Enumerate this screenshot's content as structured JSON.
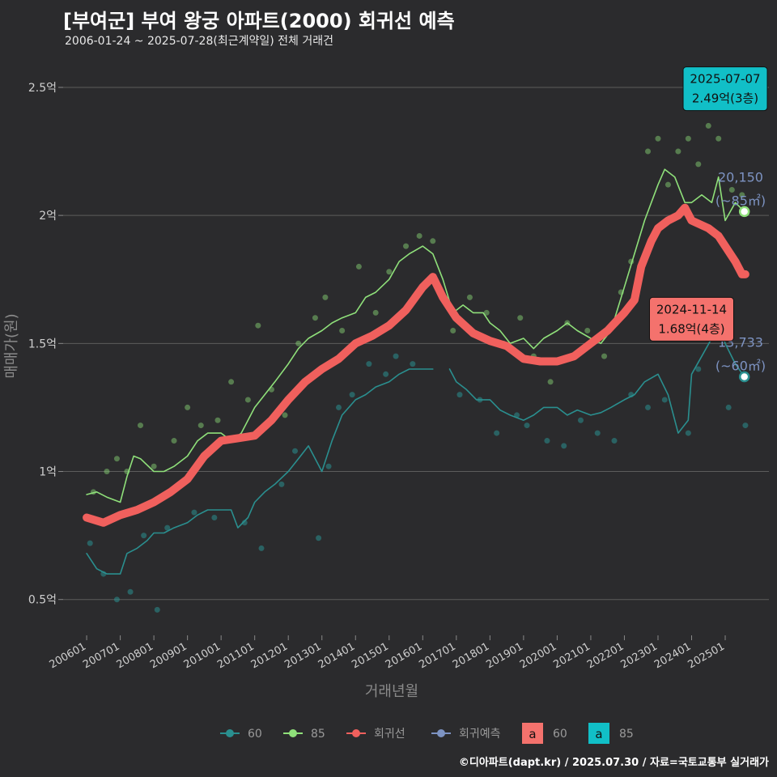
{
  "header": {
    "title": "[부여군] 부여 왕궁 아파트(2000) 회귀선 예측",
    "subtitle": "2006-01-24 ~ 2025-07-28(최근계약일) 전체 거래건",
    "credit": "©디아파트(dapt.kr) / 2025.07.30 / 자료=국토교통부 실거래가"
  },
  "colors": {
    "background": "#2b2b2d",
    "grid": "#5c5c5c",
    "s60": "#2a8f8f",
    "s85": "#8fe07a",
    "regression": "#f0605d",
    "forecast": "#7d93c2",
    "label60_bg": "#f4726d",
    "label85_bg": "#11bfc7"
  },
  "chart_data": {
    "type": "line",
    "xlabel": "거래년월",
    "ylabel": "매매가(원)",
    "x_ticks": [
      "200601",
      "200701",
      "200801",
      "200901",
      "201001",
      "201101",
      "201201",
      "201301",
      "201401",
      "201501",
      "201601",
      "201701",
      "201801",
      "201901",
      "202001",
      "202101",
      "202201",
      "202301",
      "202401",
      "202501"
    ],
    "y_ticks": [
      {
        "value": 0.5,
        "label": "0.5억"
      },
      {
        "value": 1.0,
        "label": "1억"
      },
      {
        "value": 1.5,
        "label": "1.5억"
      },
      {
        "value": 2.0,
        "label": "2억"
      },
      {
        "value": 2.5,
        "label": "2.5억"
      }
    ],
    "xlim": [
      2005.3,
      2026.3
    ],
    "ylim": [
      0.36,
      2.62
    ],
    "unit": "억",
    "series": [
      {
        "name": "60",
        "key": "s60",
        "points": [
          [
            2006.0,
            0.68
          ],
          [
            2006.3,
            0.62
          ],
          [
            2006.6,
            0.6
          ],
          [
            2007.0,
            0.6
          ],
          [
            2007.2,
            0.68
          ],
          [
            2007.5,
            0.7
          ],
          [
            2007.8,
            0.73
          ],
          [
            2008.0,
            0.76
          ],
          [
            2008.3,
            0.76
          ],
          [
            2008.6,
            0.78
          ],
          [
            2009.0,
            0.8
          ],
          [
            2009.3,
            0.83
          ],
          [
            2009.6,
            0.85
          ],
          [
            2010.0,
            0.85
          ],
          [
            2010.3,
            0.85
          ],
          [
            2010.5,
            0.78
          ],
          [
            2010.8,
            0.82
          ],
          [
            2011.0,
            0.88
          ],
          [
            2011.3,
            0.92
          ],
          [
            2011.6,
            0.95
          ],
          [
            2012.0,
            1.0
          ],
          [
            2012.3,
            1.05
          ],
          [
            2012.6,
            1.1
          ],
          [
            2013.0,
            1.0
          ],
          [
            2013.3,
            1.12
          ],
          [
            2013.6,
            1.22
          ],
          [
            2014.0,
            1.28
          ],
          [
            2014.3,
            1.3
          ],
          [
            2014.6,
            1.33
          ],
          [
            2015.0,
            1.35
          ],
          [
            2015.3,
            1.38
          ],
          [
            2015.6,
            1.4
          ],
          [
            2016.0,
            1.4
          ],
          [
            2016.3,
            1.4
          ],
          null,
          [
            2016.8,
            1.4
          ],
          [
            2017.0,
            1.35
          ],
          [
            2017.3,
            1.32
          ],
          [
            2017.6,
            1.28
          ],
          [
            2018.0,
            1.28
          ],
          [
            2018.3,
            1.24
          ],
          [
            2018.6,
            1.22
          ],
          [
            2019.0,
            1.2
          ],
          [
            2019.3,
            1.22
          ],
          [
            2019.6,
            1.25
          ],
          [
            2020.0,
            1.25
          ],
          [
            2020.3,
            1.22
          ],
          [
            2020.6,
            1.24
          ],
          [
            2021.0,
            1.22
          ],
          [
            2021.3,
            1.23
          ],
          [
            2021.6,
            1.25
          ],
          [
            2022.0,
            1.28
          ],
          [
            2022.3,
            1.3
          ],
          [
            2022.6,
            1.35
          ],
          [
            2023.0,
            1.38
          ],
          [
            2023.3,
            1.3
          ],
          [
            2023.6,
            1.15
          ],
          [
            2023.9,
            1.2
          ],
          [
            2024.0,
            1.38
          ],
          [
            2024.3,
            1.45
          ],
          [
            2024.6,
            1.52
          ],
          [
            2024.8,
            1.58
          ],
          [
            2025.0,
            1.5
          ],
          [
            2025.3,
            1.42
          ],
          [
            2025.57,
            1.37
          ]
        ]
      },
      {
        "name": "85",
        "key": "s85",
        "points": [
          [
            2006.0,
            0.91
          ],
          [
            2006.3,
            0.92
          ],
          [
            2006.6,
            0.9
          ],
          [
            2007.0,
            0.88
          ],
          [
            2007.2,
            0.98
          ],
          [
            2007.4,
            1.06
          ],
          [
            2007.6,
            1.05
          ],
          [
            2008.0,
            1.0
          ],
          [
            2008.3,
            1.0
          ],
          [
            2008.6,
            1.02
          ],
          [
            2009.0,
            1.06
          ],
          [
            2009.3,
            1.12
          ],
          [
            2009.6,
            1.15
          ],
          [
            2010.0,
            1.15
          ],
          [
            2010.3,
            1.12
          ],
          [
            2010.6,
            1.15
          ],
          [
            2011.0,
            1.25
          ],
          [
            2011.3,
            1.3
          ],
          [
            2011.6,
            1.35
          ],
          [
            2012.0,
            1.42
          ],
          [
            2012.3,
            1.48
          ],
          [
            2012.6,
            1.52
          ],
          [
            2013.0,
            1.55
          ],
          [
            2013.3,
            1.58
          ],
          [
            2013.6,
            1.6
          ],
          [
            2014.0,
            1.62
          ],
          [
            2014.3,
            1.68
          ],
          [
            2014.6,
            1.7
          ],
          [
            2015.0,
            1.75
          ],
          [
            2015.3,
            1.82
          ],
          [
            2015.6,
            1.85
          ],
          [
            2016.0,
            1.88
          ],
          [
            2016.3,
            1.85
          ],
          [
            2016.6,
            1.75
          ],
          [
            2016.9,
            1.62
          ],
          [
            2017.2,
            1.65
          ],
          [
            2017.5,
            1.62
          ],
          [
            2017.8,
            1.62
          ],
          [
            2018.0,
            1.58
          ],
          [
            2018.3,
            1.55
          ],
          [
            2018.6,
            1.5
          ],
          [
            2019.0,
            1.52
          ],
          [
            2019.3,
            1.48
          ],
          [
            2019.6,
            1.52
          ],
          [
            2020.0,
            1.55
          ],
          [
            2020.3,
            1.58
          ],
          [
            2020.6,
            1.55
          ],
          [
            2021.0,
            1.52
          ],
          [
            2021.3,
            1.5
          ],
          [
            2021.6,
            1.55
          ],
          [
            2022.0,
            1.72
          ],
          [
            2022.3,
            1.85
          ],
          [
            2022.6,
            1.98
          ],
          [
            2022.8,
            2.05
          ],
          [
            2023.0,
            2.12
          ],
          [
            2023.2,
            2.18
          ],
          [
            2023.5,
            2.15
          ],
          [
            2023.8,
            2.05
          ],
          [
            2024.0,
            2.05
          ],
          [
            2024.3,
            2.08
          ],
          [
            2024.6,
            2.05
          ],
          [
            2024.8,
            2.15
          ],
          [
            2025.0,
            1.98
          ],
          [
            2025.3,
            2.05
          ],
          [
            2025.57,
            2.015
          ]
        ]
      },
      {
        "name": "회귀선",
        "key": "regression",
        "points": [
          [
            2006.0,
            0.82
          ],
          [
            2006.5,
            0.8
          ],
          [
            2007.0,
            0.83
          ],
          [
            2007.5,
            0.85
          ],
          [
            2008.0,
            0.88
          ],
          [
            2008.5,
            0.92
          ],
          [
            2009.0,
            0.97
          ],
          [
            2009.5,
            1.06
          ],
          [
            2010.0,
            1.12
          ],
          [
            2010.5,
            1.13
          ],
          [
            2011.0,
            1.14
          ],
          [
            2011.5,
            1.2
          ],
          [
            2012.0,
            1.28
          ],
          [
            2012.5,
            1.35
          ],
          [
            2013.0,
            1.4
          ],
          [
            2013.5,
            1.44
          ],
          [
            2014.0,
            1.5
          ],
          [
            2014.5,
            1.53
          ],
          [
            2015.0,
            1.57
          ],
          [
            2015.5,
            1.63
          ],
          [
            2016.0,
            1.72
          ],
          [
            2016.3,
            1.76
          ],
          [
            2016.6,
            1.68
          ],
          [
            2017.0,
            1.6
          ],
          [
            2017.5,
            1.54
          ],
          [
            2018.0,
            1.51
          ],
          [
            2018.5,
            1.49
          ],
          [
            2019.0,
            1.44
          ],
          [
            2019.5,
            1.43
          ],
          [
            2020.0,
            1.43
          ],
          [
            2020.5,
            1.45
          ],
          [
            2021.0,
            1.5
          ],
          [
            2021.5,
            1.55
          ],
          [
            2022.0,
            1.62
          ],
          [
            2022.3,
            1.67
          ],
          [
            2022.5,
            1.8
          ],
          [
            2022.8,
            1.9
          ],
          [
            2023.0,
            1.95
          ],
          [
            2023.3,
            1.98
          ],
          [
            2023.6,
            2.0
          ],
          [
            2023.8,
            2.03
          ],
          [
            2024.0,
            1.98
          ],
          [
            2024.5,
            1.95
          ],
          [
            2024.8,
            1.92
          ],
          [
            2025.0,
            1.88
          ],
          [
            2025.3,
            1.82
          ],
          [
            2025.5,
            1.77
          ],
          [
            2025.6,
            1.77
          ]
        ]
      },
      {
        "name": "회귀예측",
        "key": "forecast",
        "points": []
      }
    ],
    "scatter_60": [
      [
        2006.1,
        0.72
      ],
      [
        2006.5,
        0.6
      ],
      [
        2006.9,
        0.5
      ],
      [
        2007.3,
        0.53
      ],
      [
        2007.7,
        0.75
      ],
      [
        2008.1,
        0.46
      ],
      [
        2008.4,
        0.78
      ],
      [
        2009.2,
        0.84
      ],
      [
        2009.8,
        0.82
      ],
      [
        2010.7,
        0.8
      ],
      [
        2011.2,
        0.7
      ],
      [
        2011.8,
        0.95
      ],
      [
        2012.2,
        1.08
      ],
      [
        2012.9,
        0.74
      ],
      [
        2013.2,
        1.02
      ],
      [
        2013.5,
        1.25
      ],
      [
        2013.9,
        1.3
      ],
      [
        2014.4,
        1.42
      ],
      [
        2014.9,
        1.38
      ],
      [
        2015.2,
        1.45
      ],
      [
        2015.7,
        1.42
      ],
      [
        2017.1,
        1.3
      ],
      [
        2017.7,
        1.28
      ],
      [
        2018.2,
        1.15
      ],
      [
        2018.8,
        1.22
      ],
      [
        2019.1,
        1.18
      ],
      [
        2019.7,
        1.12
      ],
      [
        2020.2,
        1.1
      ],
      [
        2020.7,
        1.2
      ],
      [
        2021.2,
        1.15
      ],
      [
        2021.7,
        1.12
      ],
      [
        2022.2,
        1.3
      ],
      [
        2022.7,
        1.25
      ],
      [
        2023.2,
        1.28
      ],
      [
        2023.9,
        1.15
      ],
      [
        2024.2,
        1.4
      ],
      [
        2024.7,
        1.6
      ],
      [
        2025.1,
        1.25
      ],
      [
        2025.6,
        1.18
      ]
    ],
    "scatter_85": [
      [
        2006.2,
        0.92
      ],
      [
        2006.6,
        1.0
      ],
      [
        2006.9,
        1.05
      ],
      [
        2007.2,
        1.0
      ],
      [
        2007.6,
        1.18
      ],
      [
        2008.0,
        1.02
      ],
      [
        2008.6,
        1.12
      ],
      [
        2009.0,
        1.25
      ],
      [
        2009.4,
        1.18
      ],
      [
        2009.9,
        1.2
      ],
      [
        2010.3,
        1.35
      ],
      [
        2010.8,
        1.28
      ],
      [
        2011.1,
        1.57
      ],
      [
        2011.5,
        1.32
      ],
      [
        2011.9,
        1.22
      ],
      [
        2012.3,
        1.5
      ],
      [
        2012.8,
        1.6
      ],
      [
        2013.1,
        1.68
      ],
      [
        2013.6,
        1.55
      ],
      [
        2014.1,
        1.8
      ],
      [
        2014.6,
        1.62
      ],
      [
        2015.0,
        1.78
      ],
      [
        2015.5,
        1.88
      ],
      [
        2015.9,
        1.92
      ],
      [
        2016.3,
        1.9
      ],
      [
        2016.9,
        1.55
      ],
      [
        2017.4,
        1.68
      ],
      [
        2017.9,
        1.62
      ],
      [
        2018.4,
        1.5
      ],
      [
        2018.9,
        1.6
      ],
      [
        2019.3,
        1.45
      ],
      [
        2019.8,
        1.35
      ],
      [
        2020.3,
        1.58
      ],
      [
        2020.9,
        1.55
      ],
      [
        2021.4,
        1.45
      ],
      [
        2021.9,
        1.7
      ],
      [
        2022.2,
        1.82
      ],
      [
        2022.7,
        2.25
      ],
      [
        2023.0,
        2.3
      ],
      [
        2023.3,
        2.12
      ],
      [
        2023.6,
        2.25
      ],
      [
        2023.9,
        2.3
      ],
      [
        2024.2,
        2.2
      ],
      [
        2024.5,
        2.35
      ],
      [
        2024.8,
        2.3
      ],
      [
        2025.2,
        2.1
      ],
      [
        2025.5,
        2.08
      ],
      [
        2025.6,
        2.49
      ]
    ],
    "end_labels": [
      {
        "key": "s85",
        "x": 2025.57,
        "y": 2.015,
        "text": "20,150",
        "subtext": "(~85㎡)"
      },
      {
        "key": "s60",
        "x": 2025.57,
        "y": 1.37,
        "text": "13,733",
        "subtext": "(~60㎡)"
      }
    ],
    "callouts": [
      {
        "key": "label85_bg",
        "x": 2025.0,
        "y": 2.58,
        "line1": "2025-07-07",
        "line2": "2.49억(3층)",
        "text_color": "#111111"
      },
      {
        "key": "label60_bg",
        "x": 2024.0,
        "y": 1.68,
        "line1": "2024-11-14",
        "line2": "1.68억(4층)",
        "text_color": "#111111"
      }
    ]
  },
  "legend": {
    "items": [
      {
        "key": "s60",
        "label": "60"
      },
      {
        "key": "s85",
        "label": "85"
      },
      {
        "key": "regression",
        "label": "회귀선"
      },
      {
        "key": "forecast",
        "label": "회귀예측"
      }
    ],
    "boxes": [
      {
        "key": "label60_bg",
        "glyph": "a",
        "label": "60"
      },
      {
        "key": "label85_bg",
        "glyph": "a",
        "label": "85"
      }
    ]
  }
}
